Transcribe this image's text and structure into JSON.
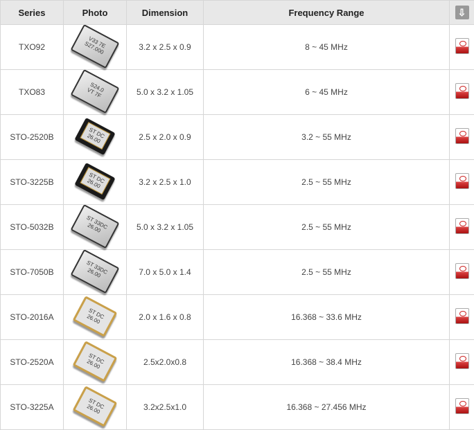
{
  "headers": {
    "series": "Series",
    "photo": "Photo",
    "dimension": "Dimension",
    "frequency": "Frequency Range"
  },
  "header_icon": "download-icon",
  "row_icon": "pdf-icon",
  "rows": [
    {
      "series": "TXO92",
      "dimension": "3.2 x 2.5 x 0.9",
      "frequency": "8 ~ 45 MHz",
      "chip": "silver",
      "mark": "V33 7E\nS27.000"
    },
    {
      "series": "TXO83",
      "dimension": "5.0 x 3.2 x 1.05",
      "frequency": "6 ~ 45 MHz",
      "chip": "silver",
      "mark": "S24.0\nVT 7F"
    },
    {
      "series": "STO-2520B",
      "dimension": "2.5 x 2.0 x 0.9",
      "frequency": "3.2 ~ 55 MHz",
      "chip": "black",
      "mark": "ST DC\n26.00"
    },
    {
      "series": "STO-3225B",
      "dimension": "3.2 x 2.5 x 1.0",
      "frequency": "2.5 ~ 55 MHz",
      "chip": "black",
      "mark": "ST DC\n26.00"
    },
    {
      "series": "STO-5032B",
      "dimension": "5.0 x 3.2 x 1.05",
      "frequency": "2.5 ~ 55 MHz",
      "chip": "silver",
      "mark": "ST 33DC\n26.00"
    },
    {
      "series": "STO-7050B",
      "dimension": "7.0 x 5.0 x 1.4",
      "frequency": "2.5 ~ 55 MHz",
      "chip": "silver",
      "mark": "ST 33DC\n26.00"
    },
    {
      "series": "STO-2016A",
      "dimension": "2.0 x 1.6 x 0.8",
      "frequency": "16.368 ~ 33.6 MHz",
      "chip": "gold",
      "mark": "ST DC\n26.00"
    },
    {
      "series": "STO-2520A",
      "dimension": "2.5x2.0x0.8",
      "frequency": "16.368 ~ 38.4 MHz",
      "chip": "gold",
      "mark": "ST DC\n26.00"
    },
    {
      "series": "STO-3225A",
      "dimension": "3.2x2.5x1.0",
      "frequency": "16.368 ~ 27.456 MHz",
      "chip": "gold",
      "mark": "ST DC\n26.00"
    }
  ]
}
